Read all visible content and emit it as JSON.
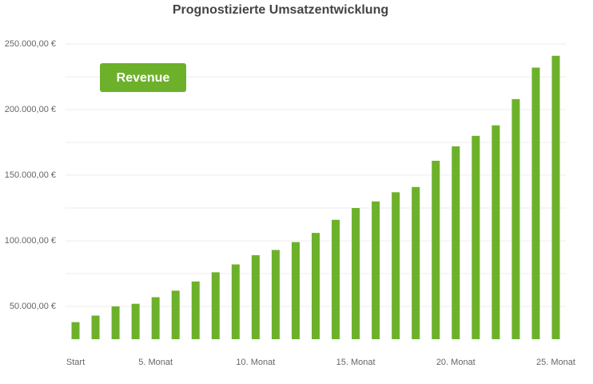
{
  "chart_data": {
    "type": "bar",
    "title": "Prognostizierte Umsatzentwicklung",
    "categories": [
      "Start",
      null,
      null,
      null,
      "5. Monat",
      null,
      null,
      null,
      null,
      "10. Monat",
      null,
      null,
      null,
      null,
      "15. Monat",
      null,
      null,
      null,
      null,
      "20. Monat",
      null,
      null,
      null,
      null,
      "25. Monat"
    ],
    "series": [
      {
        "name": "Revenue",
        "color": "#6db12b",
        "values": [
          38000,
          43000,
          50000,
          52000,
          57000,
          62000,
          69000,
          76000,
          82000,
          89000,
          93000,
          99000,
          106000,
          116000,
          125000,
          130000,
          137000,
          141000,
          161000,
          172000,
          180000,
          188000,
          208000,
          232000,
          241000
        ]
      }
    ],
    "ylim": [
      25000,
      250000
    ],
    "yticks": [
      {
        "value": 50000,
        "label": "50.000,00 €"
      },
      {
        "value": 100000,
        "label": "100.000,00 €"
      },
      {
        "value": 150000,
        "label": "150.000,00 €"
      },
      {
        "value": 200000,
        "label": "200.000,00 €"
      },
      {
        "value": 250000,
        "label": "250.000,00 €"
      }
    ],
    "minor_yticks": [
      75000,
      125000,
      175000,
      225000
    ],
    "grid": true
  }
}
